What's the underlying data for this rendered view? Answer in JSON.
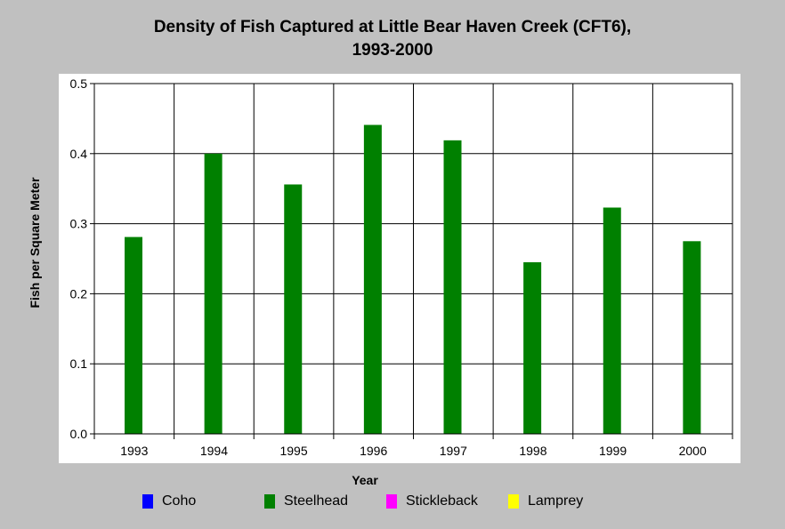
{
  "chart_data": {
    "type": "bar",
    "title_line1": "Density of Fish Captured at Little Bear Haven Creek (CFT6),",
    "title_line2": "1993-2000",
    "xlabel": "Year",
    "ylabel": "Fish per Square Meter",
    "ylim": [
      0,
      0.5
    ],
    "yticks": [
      "0.0",
      "0.1",
      "0.2",
      "0.3",
      "0.4",
      "0.5"
    ],
    "grid": true,
    "legend_position": "bottom",
    "categories": [
      "1993",
      "1994",
      "1995",
      "1996",
      "1997",
      "1998",
      "1999",
      "2000"
    ],
    "series": [
      {
        "name": "Coho",
        "color": "#0000ff",
        "values": [
          0,
          0,
          0,
          0,
          0,
          0,
          0,
          0
        ]
      },
      {
        "name": "Steelhead",
        "color": "#008000",
        "values": [
          0.281,
          0.4,
          0.356,
          0.441,
          0.419,
          0.245,
          0.323,
          0.275
        ]
      },
      {
        "name": "Stickleback",
        "color": "#ff00ff",
        "values": [
          0,
          0,
          0,
          0,
          0,
          0,
          0,
          0
        ]
      },
      {
        "name": "Lamprey",
        "color": "#ffff00",
        "values": [
          0,
          0,
          0,
          0,
          0,
          0,
          0,
          0
        ]
      }
    ]
  }
}
